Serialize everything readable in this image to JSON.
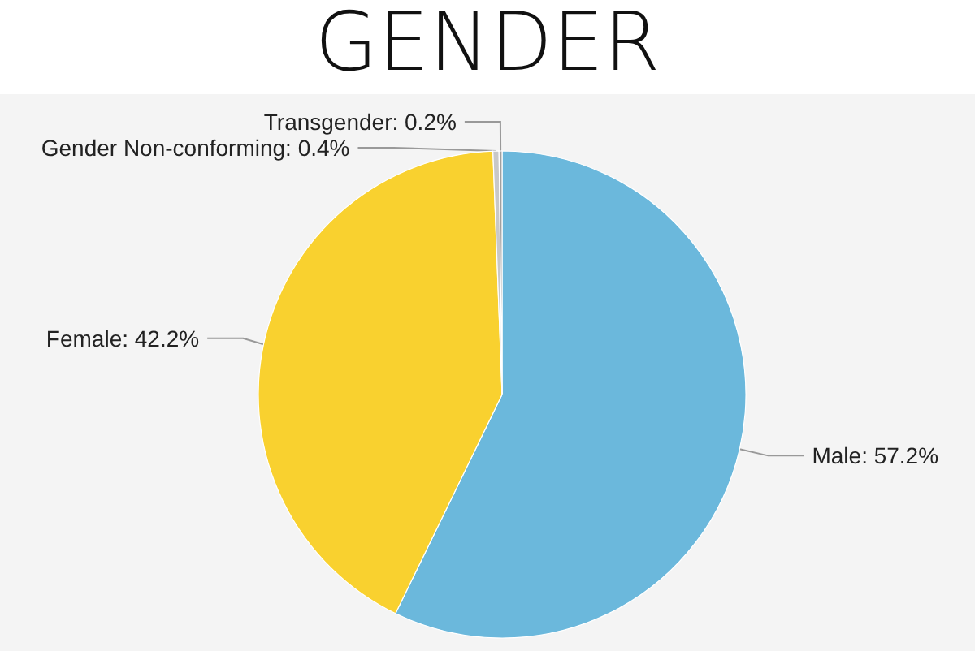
{
  "chart_data": {
    "type": "pie",
    "title": "GENDER",
    "categories": [
      "Male",
      "Female",
      "Gender Non-conforming",
      "Transgender"
    ],
    "values": [
      57.2,
      42.2,
      0.4,
      0.2
    ],
    "colors": [
      "#6bb8dc",
      "#f9d12f",
      "#c8c8c8",
      "#a0a0a0"
    ],
    "value_labels": [
      "57.2%",
      "42.2%",
      "0.4%",
      "0.2%"
    ],
    "legend": false
  }
}
